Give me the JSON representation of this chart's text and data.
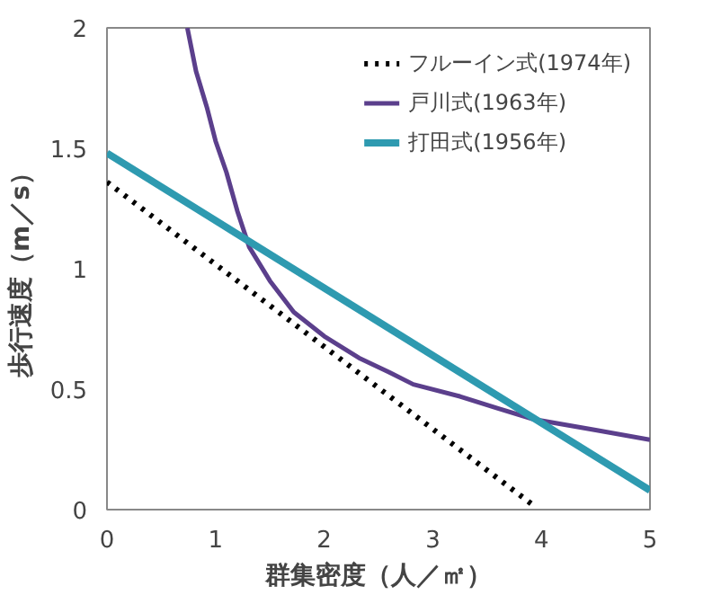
{
  "chart_data": {
    "type": "line",
    "xlabel": "群集密度（人／㎡）",
    "ylabel": "歩行速度（m／s）",
    "xlim": [
      0,
      5
    ],
    "ylim": [
      0,
      2
    ],
    "xticks": [
      0,
      1,
      2,
      3,
      4,
      5
    ],
    "yticks": [
      0,
      0.5,
      1,
      1.5,
      2
    ],
    "legend": "top right",
    "marker": "none",
    "series": [
      {
        "name": "フルーイン式(1974年)",
        "color": "#000000",
        "line_style": "dotted",
        "x": [
          0,
          3.92
        ],
        "values": [
          1.36,
          0.02
        ]
      },
      {
        "name": "戸川式(1963年)",
        "color": "#5b3f8c",
        "line_style": "solid",
        "x": [
          0.74,
          0.82,
          0.92,
          1.0,
          1.1,
          1.2,
          1.31,
          1.5,
          1.72,
          2.0,
          2.32,
          2.6,
          2.82,
          3.25,
          3.6,
          3.93,
          4.5,
          5
        ],
        "values": [
          2,
          1.82,
          1.67,
          1.53,
          1.4,
          1.24,
          1.09,
          0.95,
          0.82,
          0.72,
          0.63,
          0.57,
          0.52,
          0.47,
          0.42,
          0.375,
          0.33,
          0.29
        ]
      },
      {
        "name": "打田式(1956年)",
        "color": "#2e9ab0",
        "line_style": "solid",
        "x": [
          0,
          5
        ],
        "values": [
          1.48,
          0.08
        ]
      }
    ]
  }
}
